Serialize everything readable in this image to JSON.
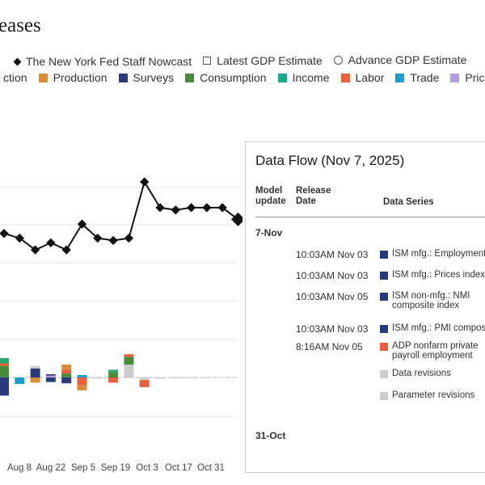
{
  "page": {
    "title": "eases"
  },
  "legend_top": [
    {
      "label": "The New York Fed Staff Nowcast",
      "symbol": "diamond"
    },
    {
      "label": "Latest GDP Estimate",
      "symbol": "square"
    },
    {
      "label": "Advance GDP Estimate",
      "symbol": "circle"
    }
  ],
  "legend_bottom": [
    {
      "label": "ction",
      "color": "#2aaa6a"
    },
    {
      "label": "Production",
      "color": "#d98c3a"
    },
    {
      "label": "Surveys",
      "color": "#2b3a7a"
    },
    {
      "label": "Consumption",
      "color": "#4a8a3c"
    },
    {
      "label": "Income",
      "color": "#1aa888"
    },
    {
      "label": "Labor",
      "color": "#e8603c"
    },
    {
      "label": "Trade",
      "color": "#1a9ed0"
    },
    {
      "label": "Prices",
      "color": "#b89ae0"
    }
  ],
  "chart_data": {
    "type": "line",
    "x_ticks": [
      "Aug 8",
      "Aug 22",
      "Sep 5",
      "Sep 19",
      "Oct 3",
      "Oct 17",
      "Oct 31"
    ],
    "nowcast": [
      2.5,
      2.4,
      2.15,
      2.3,
      2.15,
      2.7,
      2.4,
      2.35,
      2.4,
      3.6,
      3.05,
      3.0,
      3.05,
      3.05,
      3.05,
      2.8
    ],
    "impacts": [
      {
        "segments": [
          {
            "color": "#4a8a3c",
            "value": 0.9
          },
          {
            "color": "#e8603c",
            "value": 0.2
          },
          {
            "color": "#2aaa6a",
            "value": 0.4
          }
        ],
        "neg": [
          {
            "color": "#2b3a7a",
            "value": 1.4
          }
        ]
      },
      {
        "segments": [],
        "neg": [
          {
            "color": "#1a9ed0",
            "value": 0.5
          }
        ]
      },
      {
        "segments": [
          {
            "color": "#2b3a7a",
            "value": 0.7
          },
          {
            "color": "#cccccc",
            "value": 0.2
          }
        ],
        "neg": [
          {
            "color": "#d98c3a",
            "value": 0.4
          }
        ]
      },
      {
        "segments": [
          {
            "color": "#b89ae0",
            "value": 0.15
          },
          {
            "color": "#2b3a7a",
            "value": 0.1
          }
        ],
        "neg": [
          {
            "color": "#2b3a7a",
            "value": 0.35
          }
        ]
      },
      {
        "segments": [
          {
            "color": "#4a8a3c",
            "value": 0.3
          },
          {
            "color": "#e8603c",
            "value": 0.3
          },
          {
            "color": "#d98c3a",
            "value": 0.4
          }
        ],
        "neg": [
          {
            "color": "#2b3a7a",
            "value": 0.45
          }
        ]
      },
      {
        "segments": [
          {
            "color": "#1a9ed0",
            "value": 0.2
          }
        ],
        "neg": [
          {
            "color": "#e8603c",
            "value": 0.6
          },
          {
            "color": "#d98c3a",
            "value": 0.4
          }
        ]
      },
      {
        "segments": [],
        "neg": [
          {
            "color": "#cccccc",
            "value": 0.08
          }
        ]
      },
      {
        "segments": [
          {
            "color": "#4a8a3c",
            "value": 0.4
          },
          {
            "color": "#2aaa6a",
            "value": 0.2
          }
        ],
        "neg": [
          {
            "color": "#e8603c",
            "value": 0.4
          }
        ]
      },
      {
        "segments": [
          {
            "color": "#cccccc",
            "value": 1.0
          },
          {
            "color": "#4a8a3c",
            "value": 0.6
          },
          {
            "color": "#e8603c",
            "value": 0.2
          }
        ],
        "neg": []
      },
      {
        "segments": [],
        "neg": [
          {
            "color": "#cccccc",
            "value": 0.2
          },
          {
            "color": "#e8603c",
            "value": 0.55
          }
        ]
      },
      {
        "segments": [],
        "neg": [
          {
            "color": "#cccccc",
            "value": 0.08
          }
        ]
      },
      {
        "segments": [],
        "neg": [
          {
            "color": "#cccccc",
            "value": 0.06
          }
        ]
      },
      {
        "segments": [],
        "neg": [
          {
            "color": "#cccccc",
            "value": 0.05
          }
        ]
      },
      {
        "segments": [],
        "neg": [
          {
            "color": "#cccccc",
            "value": 0.05
          }
        ]
      }
    ],
    "grid": true
  },
  "data_flow": {
    "title": "Data Flow (Nov 7, 2025)",
    "headers": {
      "model": "Model update",
      "release": "Release Date",
      "series": "Data Series"
    },
    "groups": [
      {
        "label": "7-Nov",
        "rows": [
          {
            "time": "10:03AM Nov 03",
            "series": "ISM mfg.: Employment",
            "color": "#2b3a7a"
          },
          {
            "time": "10:03AM Nov 03",
            "series": "ISM mfg.: Prices index",
            "color": "#2b3a7a"
          },
          {
            "time": "10:03AM Nov 05",
            "series": "ISM non-mfg.: NMI composite index",
            "color": "#2b3a7a"
          },
          {
            "time": "10:03AM Nov 03",
            "series": "ISM mfg.: PMI composite",
            "color": "#2b3a7a"
          },
          {
            "time": "8:16AM Nov 05",
            "series": "ADP nonfarm private payroll employment",
            "color": "#e8603c"
          },
          {
            "time": "",
            "series": "Data revisions",
            "color": "#cccccc"
          },
          {
            "time": "",
            "series": "Parameter revisions",
            "color": "#cccccc"
          }
        ]
      },
      {
        "label": "31-Oct",
        "rows": []
      }
    ]
  }
}
